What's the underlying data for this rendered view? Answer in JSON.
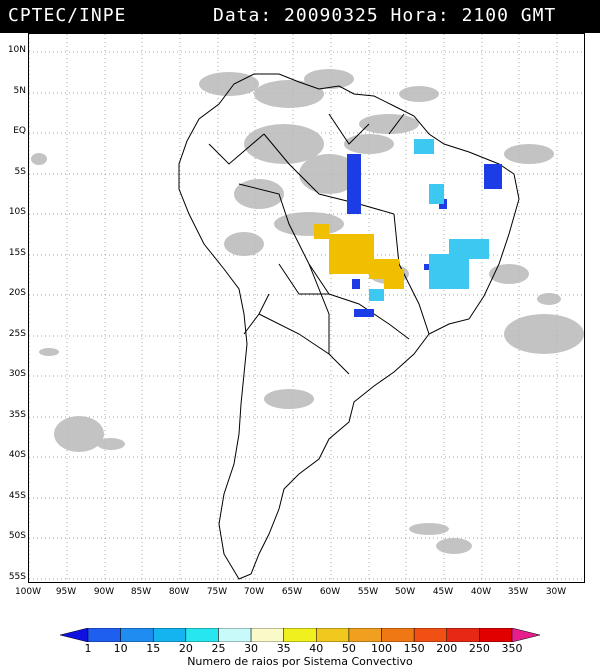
{
  "header": {
    "agency": "CPTEC/INPE",
    "datetime": "Data: 20090325 Hora: 2100 GMT"
  },
  "map": {
    "lat_labels": [
      "10N",
      "5N",
      "EQ",
      "5S",
      "10S",
      "15S",
      "20S",
      "25S",
      "30S",
      "35S",
      "40S",
      "45S",
      "50S",
      "55S"
    ],
    "lon_labels": [
      "100W",
      "95W",
      "90W",
      "85W",
      "80W",
      "75W",
      "70W",
      "65W",
      "60W",
      "55W",
      "50W",
      "45W",
      "40W",
      "35W",
      "30W"
    ],
    "colors": {
      "cloud": "#b9b9b9",
      "land_outline": "#000000"
    }
  },
  "legend": {
    "caption": "Numero de raios por Sistema Convectivo",
    "ticks": [
      "1",
      "10",
      "15",
      "20",
      "25",
      "30",
      "35",
      "40",
      "50",
      "100",
      "150",
      "200",
      "250",
      "350"
    ],
    "colors": [
      "#1010e0",
      "#1e5ff0",
      "#1e8cf0",
      "#14b4f0",
      "#28e6f0",
      "#c8fafa",
      "#fafac8",
      "#f0f01e",
      "#f0c81e",
      "#f0a01e",
      "#f07814",
      "#f05014",
      "#e62814",
      "#e00000",
      "#e61e8c"
    ]
  },
  "lightning_classes": {
    "darkblue": "#1c3ce6",
    "lightblue": "#3cc8f0",
    "yellow": "#f0c000"
  }
}
